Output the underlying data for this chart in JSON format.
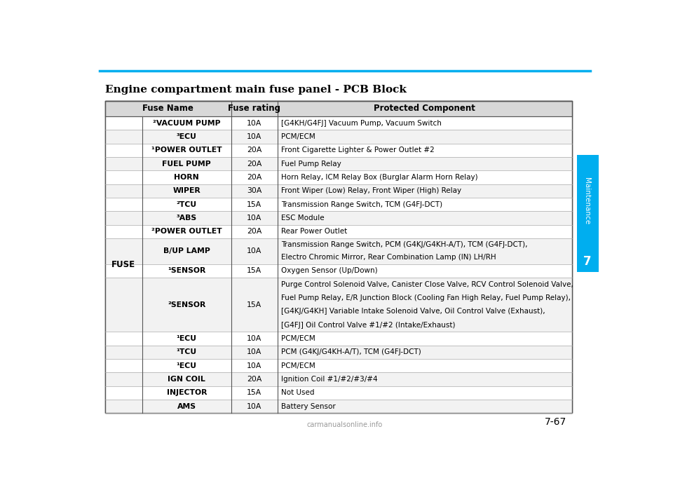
{
  "title": "Engine compartment main fuse panel - PCB Block",
  "page_number": "7-67",
  "chapter": "7",
  "chapter_label": "Maintenance",
  "top_bar_color": "#00AEEF",
  "side_tab_color": "#00AEEF",
  "col_headers": [
    "Fuse Name",
    "Fuse rating",
    "Protected Component"
  ],
  "left_label": "FUSE",
  "rows": [
    {
      "name": "²VACUUM PUMP",
      "rating": "10A",
      "component": "[G4KH/G4FJ] Vacuum Pump, Vacuum Switch"
    },
    {
      "name": "³ECU",
      "rating": "10A",
      "component": "PCM/ECM"
    },
    {
      "name": "¹POWER OUTLET",
      "rating": "20A",
      "component": "Front Cigarette Lighter & Power Outlet #2"
    },
    {
      "name": "FUEL PUMP",
      "rating": "20A",
      "component": "Fuel Pump Relay"
    },
    {
      "name": "HORN",
      "rating": "20A",
      "component": "Horn Relay, ICM Relay Box (Burglar Alarm Horn Relay)"
    },
    {
      "name": "WIPER",
      "rating": "30A",
      "component": "Front Wiper (Low) Relay, Front Wiper (High) Relay"
    },
    {
      "name": "²TCU",
      "rating": "15A",
      "component": "Transmission Range Switch, TCM (G4FJ-DCT)"
    },
    {
      "name": "³ABS",
      "rating": "10A",
      "component": "ESC Module"
    },
    {
      "name": "²POWER OUTLET",
      "rating": "20A",
      "component": "Rear Power Outlet"
    },
    {
      "name": "B/UP LAMP",
      "rating": "10A",
      "component": "Transmission Range Switch, PCM (G4KJ/G4KH-A/T), TCM (G4FJ-DCT),\nElectro Chromic Mirror, Rear Combination Lamp (IN) LH/RH"
    },
    {
      "name": "¹SENSOR",
      "rating": "15A",
      "component": "Oxygen Sensor (Up/Down)"
    },
    {
      "name": "²SENSOR",
      "rating": "15A",
      "component": "Purge Control Solenoid Valve, Canister Close Valve, RCV Control Solenoid Valve,\nFuel Pump Relay, E/R Junction Block (Cooling Fan High Relay, Fuel Pump Relay),\n[G4KJ/G4KH] Variable Intake Solenoid Valve, Oil Control Valve (Exhaust),\n[G4FJ] Oil Control Valve #1/#2 (Intake/Exhaust)"
    },
    {
      "name": "¹ECU",
      "rating": "10A",
      "component": "PCM/ECM"
    },
    {
      "name": "¹TCU",
      "rating": "10A",
      "component": "PCM (G4KJ/G4KH-A/T), TCM (G4FJ-DCT)"
    },
    {
      "name": "¹ECU",
      "rating": "10A",
      "component": "PCM/ECM"
    },
    {
      "name": "IGN COIL",
      "rating": "20A",
      "component": "Ignition Coil #1/#2/#3/#4"
    },
    {
      "name": "INJECTOR",
      "rating": "15A",
      "component": "Not Used"
    },
    {
      "name": "AMS",
      "rating": "10A",
      "component": "Battery Sensor"
    }
  ],
  "bg_color": "#ffffff",
  "header_bg": "#d8d8d8",
  "text_color": "#000000",
  "border_color_dark": "#555555",
  "border_color_light": "#aaaaaa",
  "font_size_title": 11,
  "font_size_header": 8.5,
  "font_size_body": 7.8,
  "font_size_left": 8.5,
  "watermark": "carmanualsonline.info"
}
